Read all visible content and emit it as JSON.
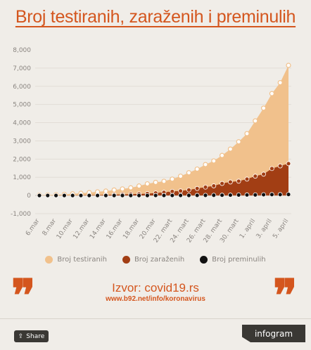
{
  "title": "Broj testiranih, zaraženih i preminulih",
  "colors": {
    "accent": "#d4561e",
    "tested": "#f1c18c",
    "infected": "#a23e14",
    "deceased": "#111111",
    "text": "#8a8580"
  },
  "chart_data": {
    "type": "area",
    "title": "",
    "ylim": [
      -1000,
      8000
    ],
    "y_ticks": [
      -1000,
      0,
      1000,
      2000,
      3000,
      4000,
      5000,
      6000,
      7000,
      8000
    ],
    "y_tick_labels": [
      "-1,000",
      "0",
      "1,000",
      "2,000",
      "3,000",
      "4,000",
      "5,000",
      "6,000",
      "7,000",
      "8,000"
    ],
    "x": [
      "6.mar",
      "7.mar",
      "8.mar",
      "9.mar",
      "10.mar",
      "11.mar",
      "12.mar",
      "13.mar",
      "14.mar",
      "15.mar",
      "16.mar",
      "17.mar",
      "18.mar",
      "19.mar",
      "20.mar",
      "21.mar",
      "22. mart",
      "23. mart",
      "24. mart",
      "25. mart",
      "26. mart",
      "27. mart",
      "28. mart",
      "29. mart",
      "30. mart",
      "31. mart",
      "1. april",
      "2. april",
      "3. april",
      "4. april",
      "5. april"
    ],
    "x_label_indices": [
      0,
      2,
      4,
      6,
      8,
      10,
      12,
      14,
      16,
      18,
      20,
      22,
      24,
      26,
      28,
      30
    ],
    "series": [
      {
        "name": "Broj testiranih",
        "values": [
          20,
          30,
          40,
          60,
          90,
          120,
          160,
          200,
          240,
          300,
          360,
          420,
          520,
          640,
          720,
          780,
          900,
          1060,
          1250,
          1450,
          1700,
          1900,
          2200,
          2550,
          2950,
          3400,
          4100,
          4800,
          5600,
          6200,
          7150
        ]
      },
      {
        "name": "Broj zaraženih",
        "values": [
          1,
          1,
          1,
          2,
          5,
          12,
          18,
          24,
          35,
          48,
          57,
          72,
          83,
          103,
          135,
          171,
          222,
          249,
          303,
          384,
          457,
          528,
          659,
          741,
          785,
          900,
          1060,
          1171,
          1476,
          1624,
          1750
        ]
      },
      {
        "name": "Broj preminulih",
        "values": [
          0,
          0,
          0,
          0,
          0,
          0,
          0,
          0,
          0,
          0,
          0,
          0,
          0,
          0,
          1,
          1,
          2,
          3,
          5,
          6,
          10,
          13,
          16,
          21,
          28,
          31,
          34,
          44,
          51,
          51,
          58
        ]
      }
    ]
  },
  "legend": [
    "Broj testiranih",
    "Broj zaraženih",
    "Broj preminulih"
  ],
  "source": "Izvor: covid19.rs",
  "link": "www.b92.net/info/koronavirus",
  "share_label": "Share",
  "brand": "infogram"
}
